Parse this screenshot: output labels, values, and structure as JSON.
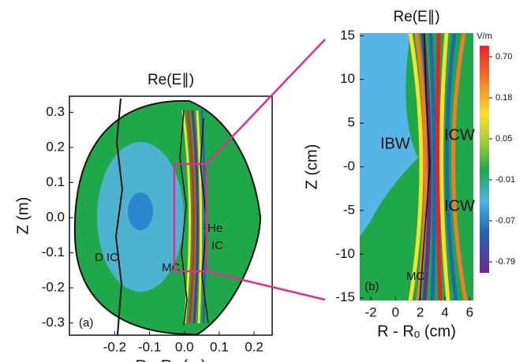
{
  "chart_data": [
    {
      "type": "contour",
      "title": "Re(E∥)",
      "xlabel": "R - Rₒ (m)",
      "ylabel": "Z (m)",
      "xlim": [
        -0.33,
        0.252
      ],
      "ylim": [
        -0.335,
        0.346
      ],
      "xticks": [
        -0.2,
        -0.1,
        {
          "value": 0,
          "label": "0.0"
        },
        0.1,
        0.2
      ],
      "yticks": [
        0.3,
        0.2,
        0.1,
        {
          "value": 0,
          "label": "0.0"
        },
        -0.1,
        -0.2,
        -0.3
      ],
      "annotations": [
        "(a)",
        "D IC",
        "MC",
        "³He",
        "IC"
      ]
    },
    {
      "type": "contour",
      "title": "Re(E∥)",
      "xlabel": "R - Rₒ (cm)",
      "ylabel": "Z (cm)",
      "xlim": [
        -2.9,
        6.3
      ],
      "ylim": [
        -15.3,
        15.3
      ],
      "xticks": [
        -2,
        0,
        2,
        4,
        6
      ],
      "yticks": [
        15,
        10,
        5,
        {
          "value": 0,
          "label": "-0"
        },
        -5,
        -10,
        -15
      ],
      "annotations": [
        "(b)",
        "IBW",
        "ICW",
        "ICW",
        "MC"
      ],
      "colorbar": {
        "label": "V/m",
        "ticks": [
          {
            "value": 0.7,
            "label": "0.70"
          },
          0.18,
          0.05,
          -0.01,
          -0.07,
          -0.79
        ]
      }
    }
  ]
}
